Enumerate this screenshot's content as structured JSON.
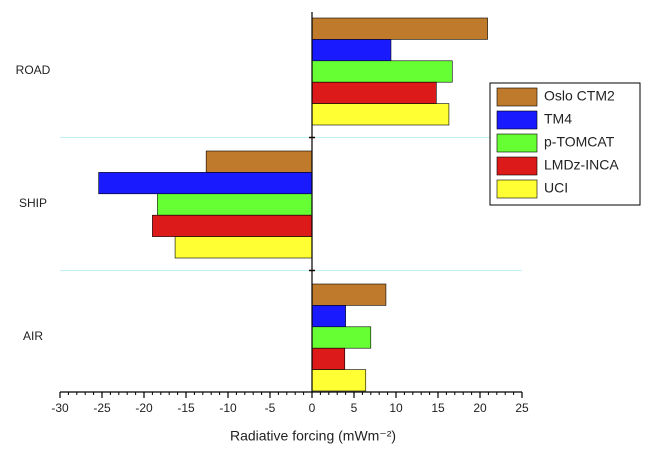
{
  "chart_data": {
    "type": "hbar",
    "xlabel": "Radiative forcing (mWm⁻²)",
    "categories": [
      "ROAD",
      "SHIP",
      "AIR"
    ],
    "series": [
      {
        "name": "Oslo CTM2",
        "color": "#c07a2c",
        "values": [
          20.9,
          -12.6,
          8.8
        ]
      },
      {
        "name": "TM4",
        "color": "#1a1aff",
        "values": [
          9.4,
          -25.4,
          4.0
        ]
      },
      {
        "name": "p-TOMCAT",
        "color": "#66ff33",
        "values": [
          16.7,
          -18.4,
          7.0
        ]
      },
      {
        "name": "LMDz-INCA",
        "color": "#dd1a1a",
        "values": [
          14.8,
          -19.0,
          3.9
        ]
      },
      {
        "name": "UCI",
        "color": "#ffff33",
        "values": [
          16.3,
          -16.3,
          6.4
        ]
      }
    ],
    "xlim": [
      -30,
      25
    ],
    "xticks": [
      -30,
      -25,
      -20,
      -15,
      -10,
      -5,
      0,
      5,
      10,
      15,
      20,
      25
    ]
  }
}
